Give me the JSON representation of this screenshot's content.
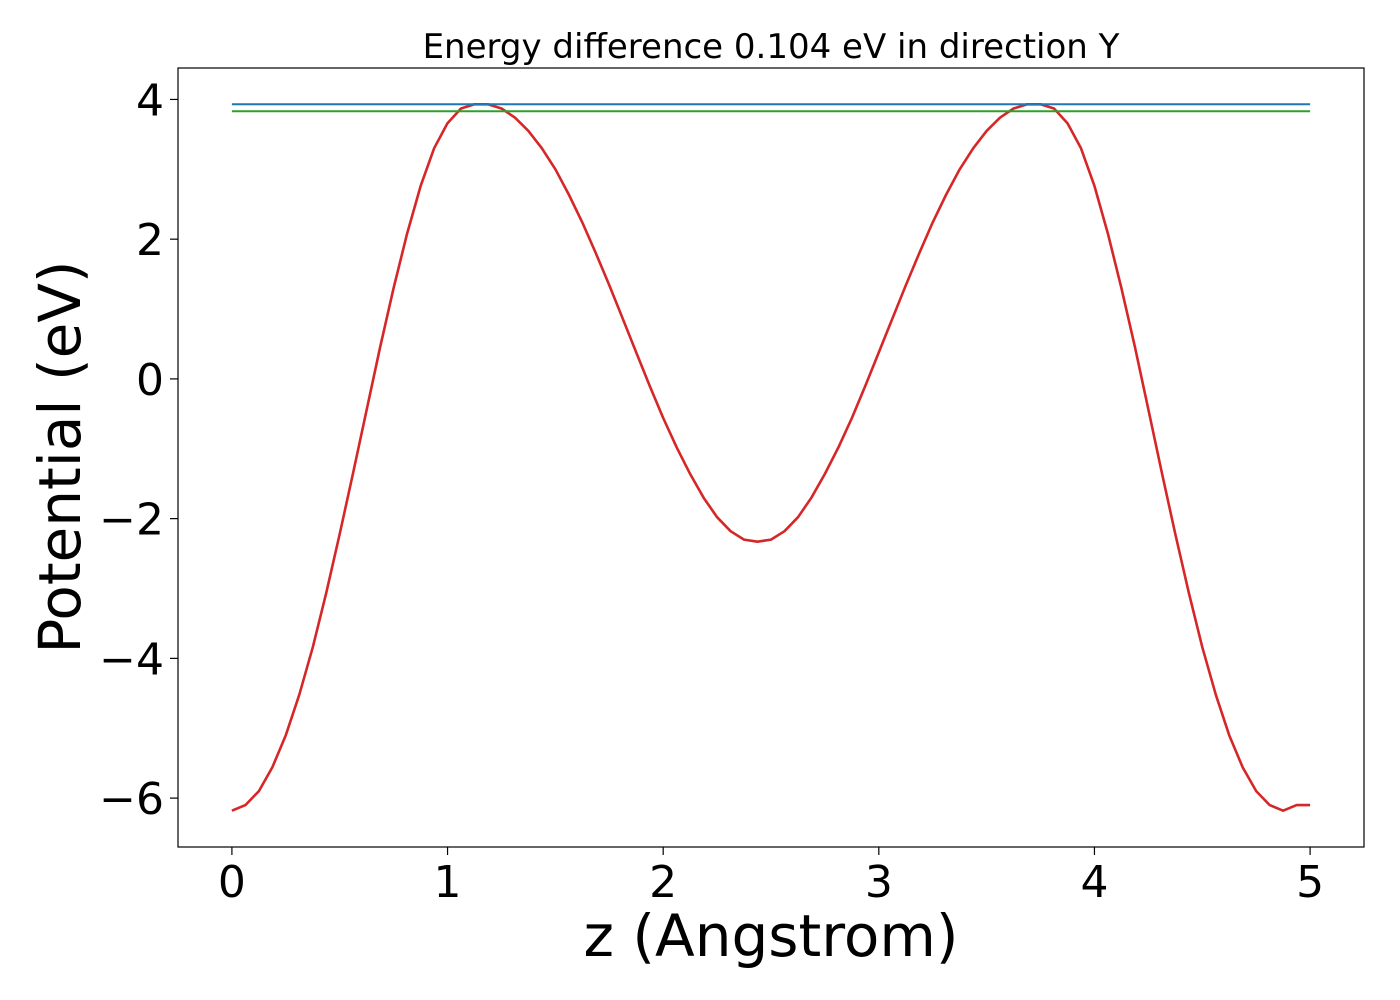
{
  "chart_data": {
    "type": "line",
    "title": "Energy difference 0.104 eV in direction Y",
    "xlabel": "z (Angstrom)",
    "ylabel": "Potential (eV)",
    "xlim": [
      -0.25,
      5.25
    ],
    "ylim": [
      -6.7,
      4.45
    ],
    "xticks": [
      0,
      1,
      2,
      3,
      4,
      5
    ],
    "xtick_labels": [
      "0",
      "1",
      "2",
      "3",
      "4",
      "5"
    ],
    "yticks": [
      -6,
      -4,
      -2,
      0,
      2,
      4
    ],
    "ytick_labels": [
      "−6",
      "−4",
      "−2",
      "0",
      "2",
      "4"
    ],
    "grid": false,
    "series": [
      {
        "color": "#d62728",
        "x": [
          0,
          0.0625,
          0.125,
          0.1875,
          0.25,
          0.3125,
          0.375,
          0.4375,
          0.5,
          0.5625,
          0.625,
          0.6875,
          0.75,
          0.8125,
          0.875,
          0.9375,
          1.0,
          1.0625,
          1.125,
          1.1875,
          1.25,
          1.3125,
          1.375,
          1.4375,
          1.5,
          1.5625,
          1.625,
          1.6875,
          1.75,
          1.8125,
          1.875,
          1.9375,
          2.0,
          2.0625,
          2.125,
          2.1875,
          2.25,
          2.3125,
          2.375,
          2.4375,
          2.5,
          2.5625,
          2.625,
          2.6875,
          2.75,
          2.8125,
          2.875,
          2.9375,
          3.0,
          3.0625,
          3.125,
          3.1875,
          3.25,
          3.3125,
          3.375,
          3.4375,
          3.5,
          3.5625,
          3.625,
          3.6875,
          3.75,
          3.8125,
          3.875,
          3.9375,
          4.0,
          4.0625,
          4.125,
          4.1875,
          4.25,
          4.3125,
          4.375,
          4.4375,
          4.5,
          4.5625,
          4.625,
          4.6875,
          4.75,
          4.8125,
          4.875,
          4.9375,
          5.0
        ],
        "y": [
          -6.18,
          -6.1,
          -5.9,
          -5.56,
          -5.1,
          -4.52,
          -3.84,
          -3.06,
          -2.22,
          -1.34,
          -0.44,
          0.46,
          1.3,
          2.08,
          2.76,
          3.3,
          3.66,
          3.87,
          3.93,
          3.93,
          3.87,
          3.74,
          3.55,
          3.3,
          3.0,
          2.64,
          2.24,
          1.8,
          1.34,
          0.86,
          0.38,
          -0.1,
          -0.56,
          -0.98,
          -1.36,
          -1.7,
          -1.98,
          -2.18,
          -2.3,
          -2.33,
          -2.3,
          -2.18,
          -1.98,
          -1.7,
          -1.36,
          -0.98,
          -0.56,
          -0.1,
          0.38,
          0.86,
          1.34,
          1.8,
          2.24,
          2.64,
          3.0,
          3.3,
          3.55,
          3.74,
          3.87,
          3.93,
          3.93,
          3.87,
          3.66,
          3.3,
          2.76,
          2.08,
          1.3,
          0.46,
          -0.44,
          -1.34,
          -2.22,
          -3.06,
          -3.84,
          -4.52,
          -5.1,
          -5.56,
          -5.9,
          -6.1,
          -6.18,
          -6.1,
          -6.1
        ]
      },
      {
        "color": "#1f77b4",
        "x": [
          0,
          5
        ],
        "y": [
          3.93,
          3.93
        ]
      },
      {
        "color": "#2ca02c",
        "x": [
          0,
          5
        ],
        "y": [
          3.83,
          3.83
        ]
      }
    ]
  }
}
